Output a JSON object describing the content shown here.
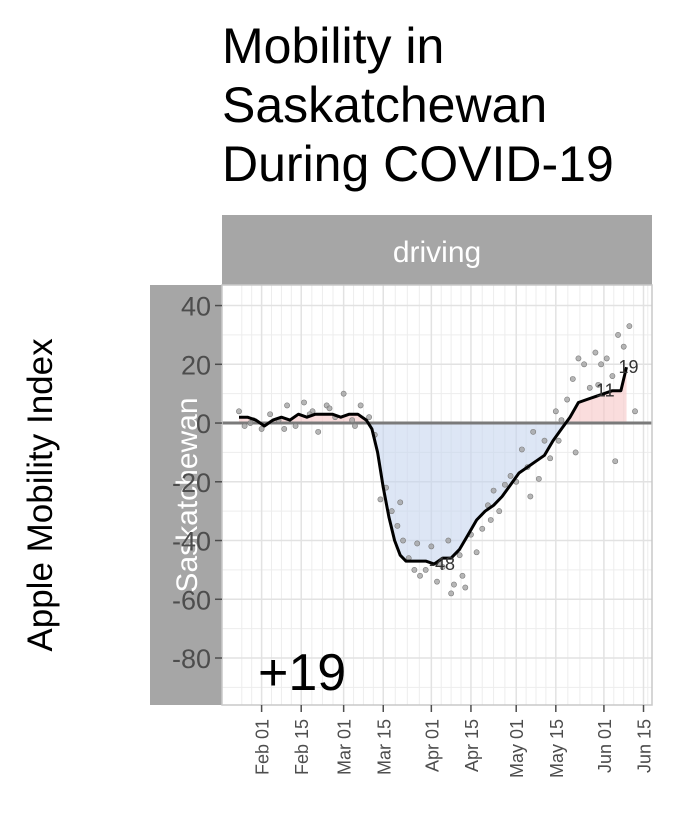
{
  "chart_data": {
    "type": "line",
    "title": [
      "Mobility in",
      "Saskatchewan",
      "During COVID-19"
    ],
    "ylabel": "Apple Mobility Index",
    "facet_top": "driving",
    "facet_side": "Saskatchewan",
    "ylim": [
      -96,
      47
    ],
    "yticks": [
      40,
      20,
      0,
      -20,
      -40,
      -60,
      -80
    ],
    "ytick_labels": [
      "40",
      "20",
      "0",
      "-20",
      "-40",
      "-60",
      "-80"
    ],
    "xlim": [
      "2020-01-18",
      "2020-06-18"
    ],
    "xticks": [
      "2020-02-01",
      "2020-02-15",
      "2020-03-01",
      "2020-03-15",
      "2020-04-01",
      "2020-04-15",
      "2020-05-01",
      "2020-05-15",
      "2020-06-01",
      "2020-06-15"
    ],
    "xtick_labels": [
      "Feb 01",
      "Feb 15",
      "Mar 01",
      "Mar 15",
      "Apr 01",
      "Apr 15",
      "May 01",
      "May 15",
      "Jun 01",
      "Jun 15"
    ],
    "reference_line": 0,
    "grid": true,
    "colors": {
      "below": "#c6d6ee",
      "above": "#f6c6c6",
      "line": "#000000",
      "points": "#9e9e9e",
      "strip": "#a6a6a6",
      "panel_border": "#c8c8c8",
      "grid": "#e2e2e2"
    },
    "series": [
      {
        "x": [
          "2020-01-24",
          "2020-01-27",
          "2020-01-30",
          "2020-02-02",
          "2020-02-05",
          "2020-02-08",
          "2020-02-11",
          "2020-02-14",
          "2020-02-17",
          "2020-02-20",
          "2020-02-23",
          "2020-02-26",
          "2020-02-29",
          "2020-03-03",
          "2020-03-06",
          "2020-03-09",
          "2020-03-11",
          "2020-03-13",
          "2020-03-15",
          "2020-03-17",
          "2020-03-19",
          "2020-03-21",
          "2020-03-23",
          "2020-03-25",
          "2020-03-27",
          "2020-03-30",
          "2020-04-02",
          "2020-04-05",
          "2020-04-08",
          "2020-04-11",
          "2020-04-14",
          "2020-04-17",
          "2020-04-20",
          "2020-04-23",
          "2020-04-26",
          "2020-04-29",
          "2020-05-02",
          "2020-05-05",
          "2020-05-08",
          "2020-05-11",
          "2020-05-14",
          "2020-05-17",
          "2020-05-20",
          "2020-05-23",
          "2020-05-26",
          "2020-05-29",
          "2020-06-01",
          "2020-06-04",
          "2020-06-07",
          "2020-06-09"
        ],
        "values": [
          2,
          2,
          1,
          -1,
          1,
          2,
          1,
          3,
          2,
          3,
          3,
          3,
          2,
          3,
          3,
          1,
          -2,
          -10,
          -22,
          -32,
          -40,
          -45,
          -47,
          -47,
          -47,
          -47,
          -48,
          -46,
          -46,
          -43,
          -38,
          -33,
          -30,
          -28,
          -25,
          -21,
          -17,
          -15,
          -13,
          -11,
          -6,
          -2,
          2,
          7,
          8,
          9,
          10,
          11,
          11,
          19
        ]
      }
    ],
    "points": {
      "x": [
        "2020-01-24",
        "2020-01-26",
        "2020-01-29",
        "2020-02-01",
        "2020-02-04",
        "2020-02-07",
        "2020-02-10",
        "2020-02-13",
        "2020-02-16",
        "2020-02-19",
        "2020-02-21",
        "2020-02-24",
        "2020-02-27",
        "2020-03-01",
        "2020-03-04",
        "2020-03-07",
        "2020-03-10",
        "2020-03-12",
        "2020-03-14",
        "2020-03-16",
        "2020-03-18",
        "2020-03-20",
        "2020-03-22",
        "2020-03-24",
        "2020-03-26",
        "2020-03-28",
        "2020-03-30",
        "2020-04-01",
        "2020-04-03",
        "2020-04-05",
        "2020-04-07",
        "2020-04-09",
        "2020-04-11",
        "2020-04-13",
        "2020-04-15",
        "2020-04-17",
        "2020-04-19",
        "2020-04-21",
        "2020-04-23",
        "2020-04-25",
        "2020-04-27",
        "2020-04-29",
        "2020-05-01",
        "2020-05-03",
        "2020-05-05",
        "2020-05-07",
        "2020-05-09",
        "2020-05-11",
        "2020-05-13",
        "2020-05-15",
        "2020-05-17",
        "2020-05-19",
        "2020-05-21",
        "2020-05-23",
        "2020-05-25",
        "2020-05-27",
        "2020-05-29",
        "2020-05-31",
        "2020-06-02",
        "2020-06-04",
        "2020-06-06",
        "2020-06-08",
        "2020-06-10",
        "2020-06-12",
        "2020-01-28",
        "2020-02-09",
        "2020-02-18",
        "2020-02-25",
        "2020-03-05",
        "2020-03-21",
        "2020-03-27",
        "2020-04-04",
        "2020-04-08",
        "2020-04-12",
        "2020-04-22",
        "2020-05-06",
        "2020-05-16",
        "2020-05-22",
        "2020-05-30",
        "2020-06-05"
      ],
      "values": [
        4,
        -1,
        1,
        -2,
        3,
        1,
        6,
        -1,
        7,
        4,
        -3,
        6,
        2,
        10,
        1,
        6,
        2,
        -4,
        -26,
        -22,
        -30,
        -35,
        -40,
        -46,
        -50,
        -52,
        -50,
        -42,
        -54,
        -49,
        -40,
        -55,
        -45,
        -56,
        -38,
        -44,
        -36,
        -28,
        -23,
        -30,
        -21,
        -18,
        -20,
        -9,
        -15,
        -3,
        -19,
        -6,
        -12,
        4,
        1,
        8,
        15,
        22,
        20,
        12,
        24,
        20,
        22,
        16,
        30,
        26,
        33,
        4,
        0,
        -2,
        3,
        5,
        -1,
        -27,
        -41,
        -48,
        -58,
        -52,
        -33,
        -25,
        -6,
        -10,
        13,
        -13
      ]
    },
    "annotations": [
      {
        "x": "2020-04-03",
        "y": -48,
        "label": "-48"
      },
      {
        "x": "2020-06-01",
        "y": 11,
        "label": "11"
      },
      {
        "x": "2020-06-09",
        "y": 19,
        "label": "19"
      }
    ],
    "change_label": "+19"
  }
}
